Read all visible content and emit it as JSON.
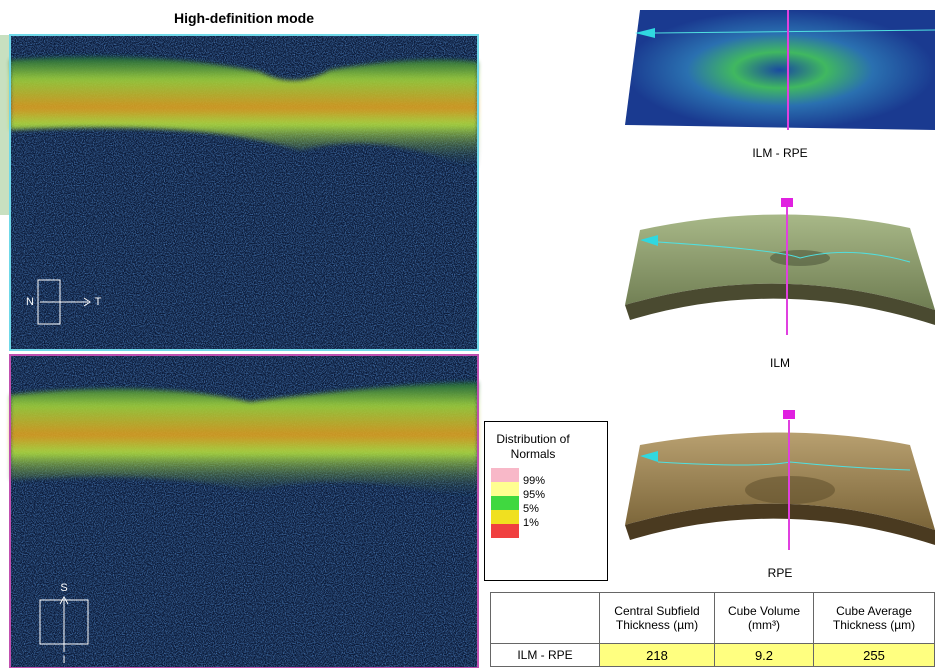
{
  "header": {
    "title": "High-definition mode"
  },
  "scans": [
    {
      "orientation": {
        "start": "N",
        "end": "T"
      }
    },
    {
      "orientation": {
        "start": "S",
        "end": "I"
      }
    }
  ],
  "maps": [
    {
      "label": "ILM - RPE"
    },
    {
      "label": "ILM"
    },
    {
      "label": "RPE"
    }
  ],
  "legend": {
    "title": "Distribution of Normals",
    "levels": [
      "99%",
      "95%",
      "5%",
      "1%"
    ]
  },
  "table": {
    "columns": [
      "Central Subfield Thickness (µm)",
      "Cube Volume (mm³)",
      "Cube Average Thickness (µm)"
    ],
    "rows": [
      {
        "label": "ILM - RPE",
        "values": [
          218,
          9.2,
          255
        ]
      }
    ]
  }
}
